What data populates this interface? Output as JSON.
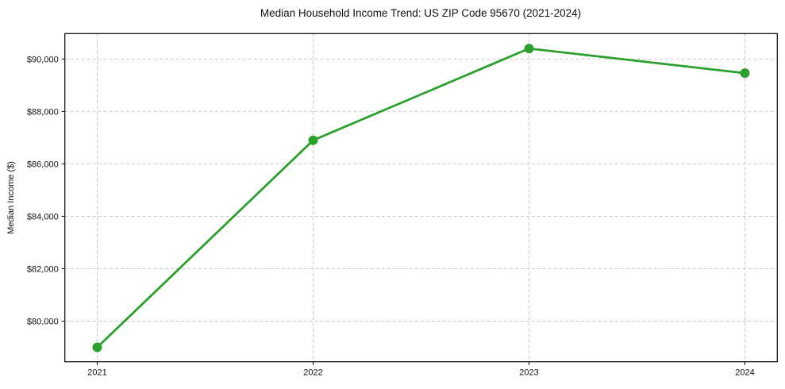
{
  "chart_data": {
    "type": "line",
    "title": "Median Household Income Trend: US ZIP Code 95670 (2021-2024)",
    "xlabel": "",
    "ylabel": "Median Income ($)",
    "x": [
      2021,
      2022,
      2023,
      2024
    ],
    "xtick_labels": [
      "2021",
      "2022",
      "2023",
      "2024"
    ],
    "series": [
      {
        "name": "Median Household Income",
        "values": [
          79000,
          86900,
          90400,
          89460
        ],
        "color": "#2ca02c",
        "marker": "circle"
      }
    ],
    "yticks": [
      80000,
      82000,
      84000,
      86000,
      88000,
      90000
    ],
    "ytick_labels": [
      "$80,000",
      "$82,000",
      "$84,000",
      "$86,000",
      "$88,000",
      "$90,000"
    ],
    "ylim": [
      78450,
      90970
    ],
    "xlim": [
      2020.85,
      2024.15
    ],
    "grid": true,
    "grid_style": "dashed",
    "grid_color": "#c9c9c9",
    "axes_color": "#000000",
    "text_color": "#111111",
    "background": "#ffffff",
    "legend": false
  }
}
